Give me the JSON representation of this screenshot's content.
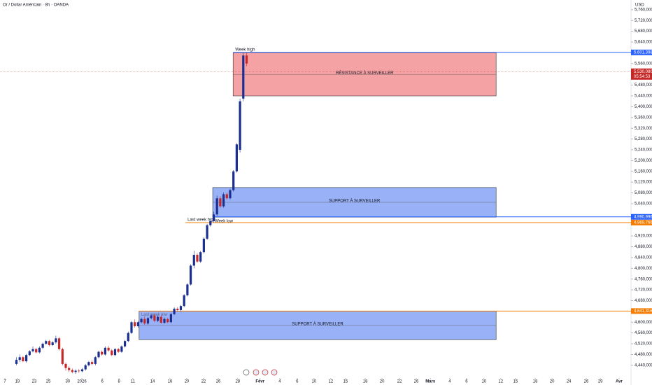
{
  "chart_data": {
    "type": "candlestick",
    "title": "Or / Dollar Américain · 8h · OANDA",
    "currency": "USD",
    "up_color": "#1a2f8f",
    "down_color": "#c62828",
    "xlim": [
      0,
      191.5
    ],
    "ylim": [
      4398,
      5796
    ],
    "xticks": [
      {
        "value": 1.5,
        "label": "7"
      },
      {
        "value": 5.3,
        "label": "19"
      },
      {
        "value": 10.4,
        "label": "23"
      },
      {
        "value": 14.7,
        "label": "25"
      },
      {
        "value": 20.6,
        "label": "30"
      },
      {
        "value": 24.9,
        "label": "2026"
      },
      {
        "value": 31.1,
        "label": "6"
      },
      {
        "value": 36.2,
        "label": "8"
      },
      {
        "value": 40.4,
        "label": "11"
      },
      {
        "value": 46.4,
        "label": "14"
      },
      {
        "value": 51.7,
        "label": "16"
      },
      {
        "value": 56.8,
        "label": "20"
      },
      {
        "value": 61.9,
        "label": "22"
      },
      {
        "value": 66.4,
        "label": "26"
      },
      {
        "value": 72.3,
        "label": "28"
      },
      {
        "value": 79.1,
        "label": "Févr"
      },
      {
        "value": 85.1,
        "label": "4"
      },
      {
        "value": 90.4,
        "label": "6"
      },
      {
        "value": 95.5,
        "label": "10"
      },
      {
        "value": 100.6,
        "label": "12"
      },
      {
        "value": 105.1,
        "label": "15"
      },
      {
        "value": 111.1,
        "label": "18"
      },
      {
        "value": 116.2,
        "label": "20"
      },
      {
        "value": 121.5,
        "label": "22"
      },
      {
        "value": 126.6,
        "label": "26"
      },
      {
        "value": 130.9,
        "label": "Mars"
      },
      {
        "value": 136.8,
        "label": "4"
      },
      {
        "value": 141.9,
        "label": "6"
      },
      {
        "value": 147.2,
        "label": "10"
      },
      {
        "value": 152.3,
        "label": "12"
      },
      {
        "value": 156.8,
        "label": "15"
      },
      {
        "value": 162.8,
        "label": "18"
      },
      {
        "value": 167.9,
        "label": "20"
      },
      {
        "value": 173.0,
        "label": "24"
      },
      {
        "value": 178.3,
        "label": "26"
      },
      {
        "value": 182.6,
        "label": "29"
      },
      {
        "value": 188.3,
        "label": "Avr"
      }
    ],
    "yticks": [
      {
        "value": 4440,
        "label": "4,440,000"
      },
      {
        "value": 4480,
        "label": "4,480,000"
      },
      {
        "value": 4520,
        "label": "4,520,000"
      },
      {
        "value": 4560,
        "label": "4,560,000"
      },
      {
        "value": 4600,
        "label": "4,600,000"
      },
      {
        "value": 4680,
        "label": "4,680,000"
      },
      {
        "value": 4720,
        "label": "4,720,000"
      },
      {
        "value": 4760,
        "label": "4,760,000"
      },
      {
        "value": 4800,
        "label": "4,800,000"
      },
      {
        "value": 4840,
        "label": "4,840,000"
      },
      {
        "value": 4880,
        "label": "4,880,000"
      },
      {
        "value": 4920,
        "label": "4,920,000"
      },
      {
        "value": 5040,
        "label": "5,040,000"
      },
      {
        "value": 5080,
        "label": "5,080,000"
      },
      {
        "value": 5120,
        "label": "5,120,000"
      },
      {
        "value": 5160,
        "label": "5,160,000"
      },
      {
        "value": 5200,
        "label": "5,200,000"
      },
      {
        "value": 5240,
        "label": "5,240,000"
      },
      {
        "value": 5280,
        "label": "5,280,000"
      },
      {
        "value": 5320,
        "label": "5,320,000"
      },
      {
        "value": 5360,
        "label": "5,360,000"
      },
      {
        "value": 5400,
        "label": "5,400,000"
      },
      {
        "value": 5440,
        "label": "5,440,000"
      },
      {
        "value": 5480,
        "label": "5,480,000"
      },
      {
        "value": 5560,
        "label": "5,560,000"
      },
      {
        "value": 5640,
        "label": "5,640,000"
      },
      {
        "value": 5680,
        "label": "5,680,000"
      },
      {
        "value": 5720,
        "label": "5,720,000"
      },
      {
        "value": 5760,
        "label": "5,760,000"
      }
    ],
    "x": [
      5,
      6,
      7,
      8,
      9,
      10,
      11,
      12,
      13,
      14,
      15,
      16,
      17,
      18,
      19,
      20,
      21,
      22,
      23,
      24,
      25,
      26,
      27,
      28,
      29,
      30,
      31,
      32,
      33,
      34,
      35,
      36,
      37,
      38,
      39,
      40,
      41,
      42,
      43,
      44,
      45,
      46,
      47,
      48,
      49,
      50,
      51,
      52,
      53,
      54,
      55,
      56,
      57,
      58,
      59,
      60,
      61,
      62,
      63,
      64,
      65,
      66,
      67,
      68,
      69,
      70,
      71,
      72,
      73,
      74,
      75
    ],
    "open": [
      4445,
      4460,
      4470,
      4455,
      4478,
      4492,
      4500,
      4488,
      4505,
      4520,
      4530,
      4515,
      4525,
      4540,
      4500,
      4445,
      4430,
      4422,
      4415,
      4420,
      4418,
      4425,
      4440,
      4452,
      4445,
      4470,
      4490,
      4480,
      4505,
      4495,
      4478,
      4500,
      4490,
      4510,
      4530,
      4560,
      4600,
      4585,
      4600,
      4612,
      4595,
      4615,
      4625,
      4605,
      4620,
      4598,
      4612,
      4600,
      4630,
      4650,
      4645,
      4660,
      4700,
      4740,
      4810,
      4850,
      4825,
      4860,
      4910,
      4960,
      4975,
      5000,
      5060,
      5030,
      5075,
      5060,
      5090,
      5160,
      5240,
      5430,
      5590
    ],
    "high": [
      4470,
      4480,
      4475,
      4482,
      4496,
      4510,
      4505,
      4510,
      4524,
      4535,
      4534,
      4530,
      4550,
      4545,
      4505,
      4450,
      4436,
      4428,
      4425,
      4426,
      4430,
      4445,
      4456,
      4458,
      4474,
      4494,
      4495,
      4510,
      4512,
      4500,
      4504,
      4505,
      4514,
      4534,
      4565,
      4605,
      4610,
      4604,
      4618,
      4622,
      4620,
      4630,
      4632,
      4625,
      4628,
      4618,
      4616,
      4634,
      4655,
      4656,
      4664,
      4704,
      4745,
      4815,
      4865,
      4856,
      4864,
      4915,
      4965,
      4982,
      5010,
      5070,
      5068,
      5082,
      5082,
      5095,
      5165,
      5265,
      5430,
      5600,
      5601
    ],
    "low": [
      4440,
      4452,
      4452,
      4450,
      4474,
      4488,
      4484,
      4484,
      4500,
      4516,
      4510,
      4512,
      4520,
      4495,
      4440,
      4420,
      4415,
      4410,
      4408,
      4412,
      4414,
      4420,
      4436,
      4440,
      4440,
      4466,
      4476,
      4476,
      4490,
      4474,
      4474,
      4486,
      4486,
      4506,
      4526,
      4556,
      4580,
      4580,
      4595,
      4590,
      4590,
      4610,
      4600,
      4600,
      4594,
      4594,
      4596,
      4596,
      4626,
      4640,
      4640,
      4656,
      4696,
      4736,
      4800,
      4820,
      4820,
      4855,
      4905,
      4955,
      4970,
      4995,
      5025,
      5025,
      5055,
      5055,
      5085,
      5155,
      5230,
      5420,
      5550
    ],
    "close": [
      4460,
      4470,
      4455,
      4478,
      4492,
      4500,
      4488,
      4505,
      4520,
      4530,
      4515,
      4525,
      4540,
      4500,
      4445,
      4430,
      4422,
      4415,
      4420,
      4418,
      4425,
      4440,
      4452,
      4445,
      4470,
      4490,
      4480,
      4505,
      4495,
      4478,
      4500,
      4490,
      4510,
      4530,
      4560,
      4600,
      4585,
      4600,
      4612,
      4595,
      4615,
      4625,
      4605,
      4620,
      4598,
      4612,
      4600,
      4630,
      4650,
      4645,
      4660,
      4700,
      4740,
      4810,
      4850,
      4825,
      4860,
      4910,
      4960,
      4975,
      5000,
      5060,
      5030,
      5075,
      5060,
      5090,
      5160,
      5260,
      5420,
      5590,
      5560
    ],
    "zones": [
      {
        "label": "RÉSISTANCE À SURVEILLER",
        "x": [
          70.9,
          150.9
        ],
        "y": [
          5440,
          5600
        ],
        "color": "#f28b8f"
      },
      {
        "label": "SUPPORT À SURVEILLER",
        "x": [
          64.7,
          150.9
        ],
        "y": [
          4990,
          5100
        ],
        "color": "#7f9ef5"
      },
      {
        "label": "SUPPORT À SURVEILLER",
        "x": [
          42.3,
          150.9
        ],
        "y": [
          4535,
          4641
        ],
        "color": "#7f9ef5"
      }
    ],
    "levels": [
      {
        "name": "Week high",
        "value": 5601.398,
        "label": "5,601,398",
        "x0": 70.9,
        "color": "#2962ff"
      },
      {
        "name": "Week low",
        "value": 4990.996,
        "label": "4,990,996",
        "x0": 64.7,
        "color": "#2962ff"
      },
      {
        "name": "Last week high",
        "value": 4969.766,
        "label": "4,969,766",
        "x0": 56.4,
        "color": "#f57c00"
      },
      {
        "name": "Last week low",
        "value": 4641.316,
        "label": "4,641,316",
        "x0": 42.3,
        "color": "#f57c00"
      }
    ],
    "last_price": {
      "value": 5530.08,
      "label": "5,530,080",
      "countdown": "05:54:53",
      "color": "#c62828"
    }
  }
}
